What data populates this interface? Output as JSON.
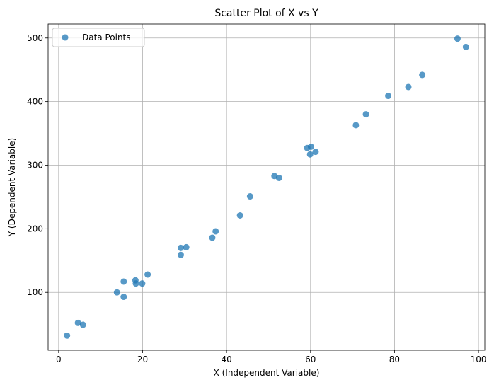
{
  "chart_data": {
    "type": "scatter",
    "title": "Scatter Plot of X vs Y",
    "xlabel": "X (Independent Variable)",
    "ylabel": "Y (Dependent Variable)",
    "xlim": [
      -2.5,
      101.5
    ],
    "ylim": [
      9,
      522
    ],
    "xticks": [
      0,
      20,
      40,
      60,
      80,
      100
    ],
    "yticks": [
      100,
      200,
      300,
      400,
      500
    ],
    "grid": true,
    "legend": {
      "position": "top-left",
      "entries": [
        "Data Points"
      ]
    },
    "series": [
      {
        "name": "Data Points",
        "color": "#1f77b4",
        "points": [
          {
            "x": 2.0,
            "y": 32
          },
          {
            "x": 4.6,
            "y": 52
          },
          {
            "x": 5.8,
            "y": 49
          },
          {
            "x": 13.9,
            "y": 100
          },
          {
            "x": 15.5,
            "y": 117
          },
          {
            "x": 15.5,
            "y": 93
          },
          {
            "x": 18.3,
            "y": 119
          },
          {
            "x": 18.4,
            "y": 114
          },
          {
            "x": 19.9,
            "y": 114
          },
          {
            "x": 21.2,
            "y": 128
          },
          {
            "x": 29.1,
            "y": 170
          },
          {
            "x": 29.1,
            "y": 159
          },
          {
            "x": 30.4,
            "y": 171
          },
          {
            "x": 36.6,
            "y": 186
          },
          {
            "x": 37.4,
            "y": 196
          },
          {
            "x": 43.2,
            "y": 221
          },
          {
            "x": 45.6,
            "y": 251
          },
          {
            "x": 51.4,
            "y": 283
          },
          {
            "x": 52.5,
            "y": 280
          },
          {
            "x": 59.2,
            "y": 327
          },
          {
            "x": 59.9,
            "y": 317
          },
          {
            "x": 60.1,
            "y": 329
          },
          {
            "x": 61.2,
            "y": 321
          },
          {
            "x": 70.8,
            "y": 363
          },
          {
            "x": 73.2,
            "y": 380
          },
          {
            "x": 78.5,
            "y": 409
          },
          {
            "x": 83.3,
            "y": 423
          },
          {
            "x": 86.6,
            "y": 442
          },
          {
            "x": 95.0,
            "y": 499
          },
          {
            "x": 97.0,
            "y": 486
          }
        ]
      }
    ]
  }
}
